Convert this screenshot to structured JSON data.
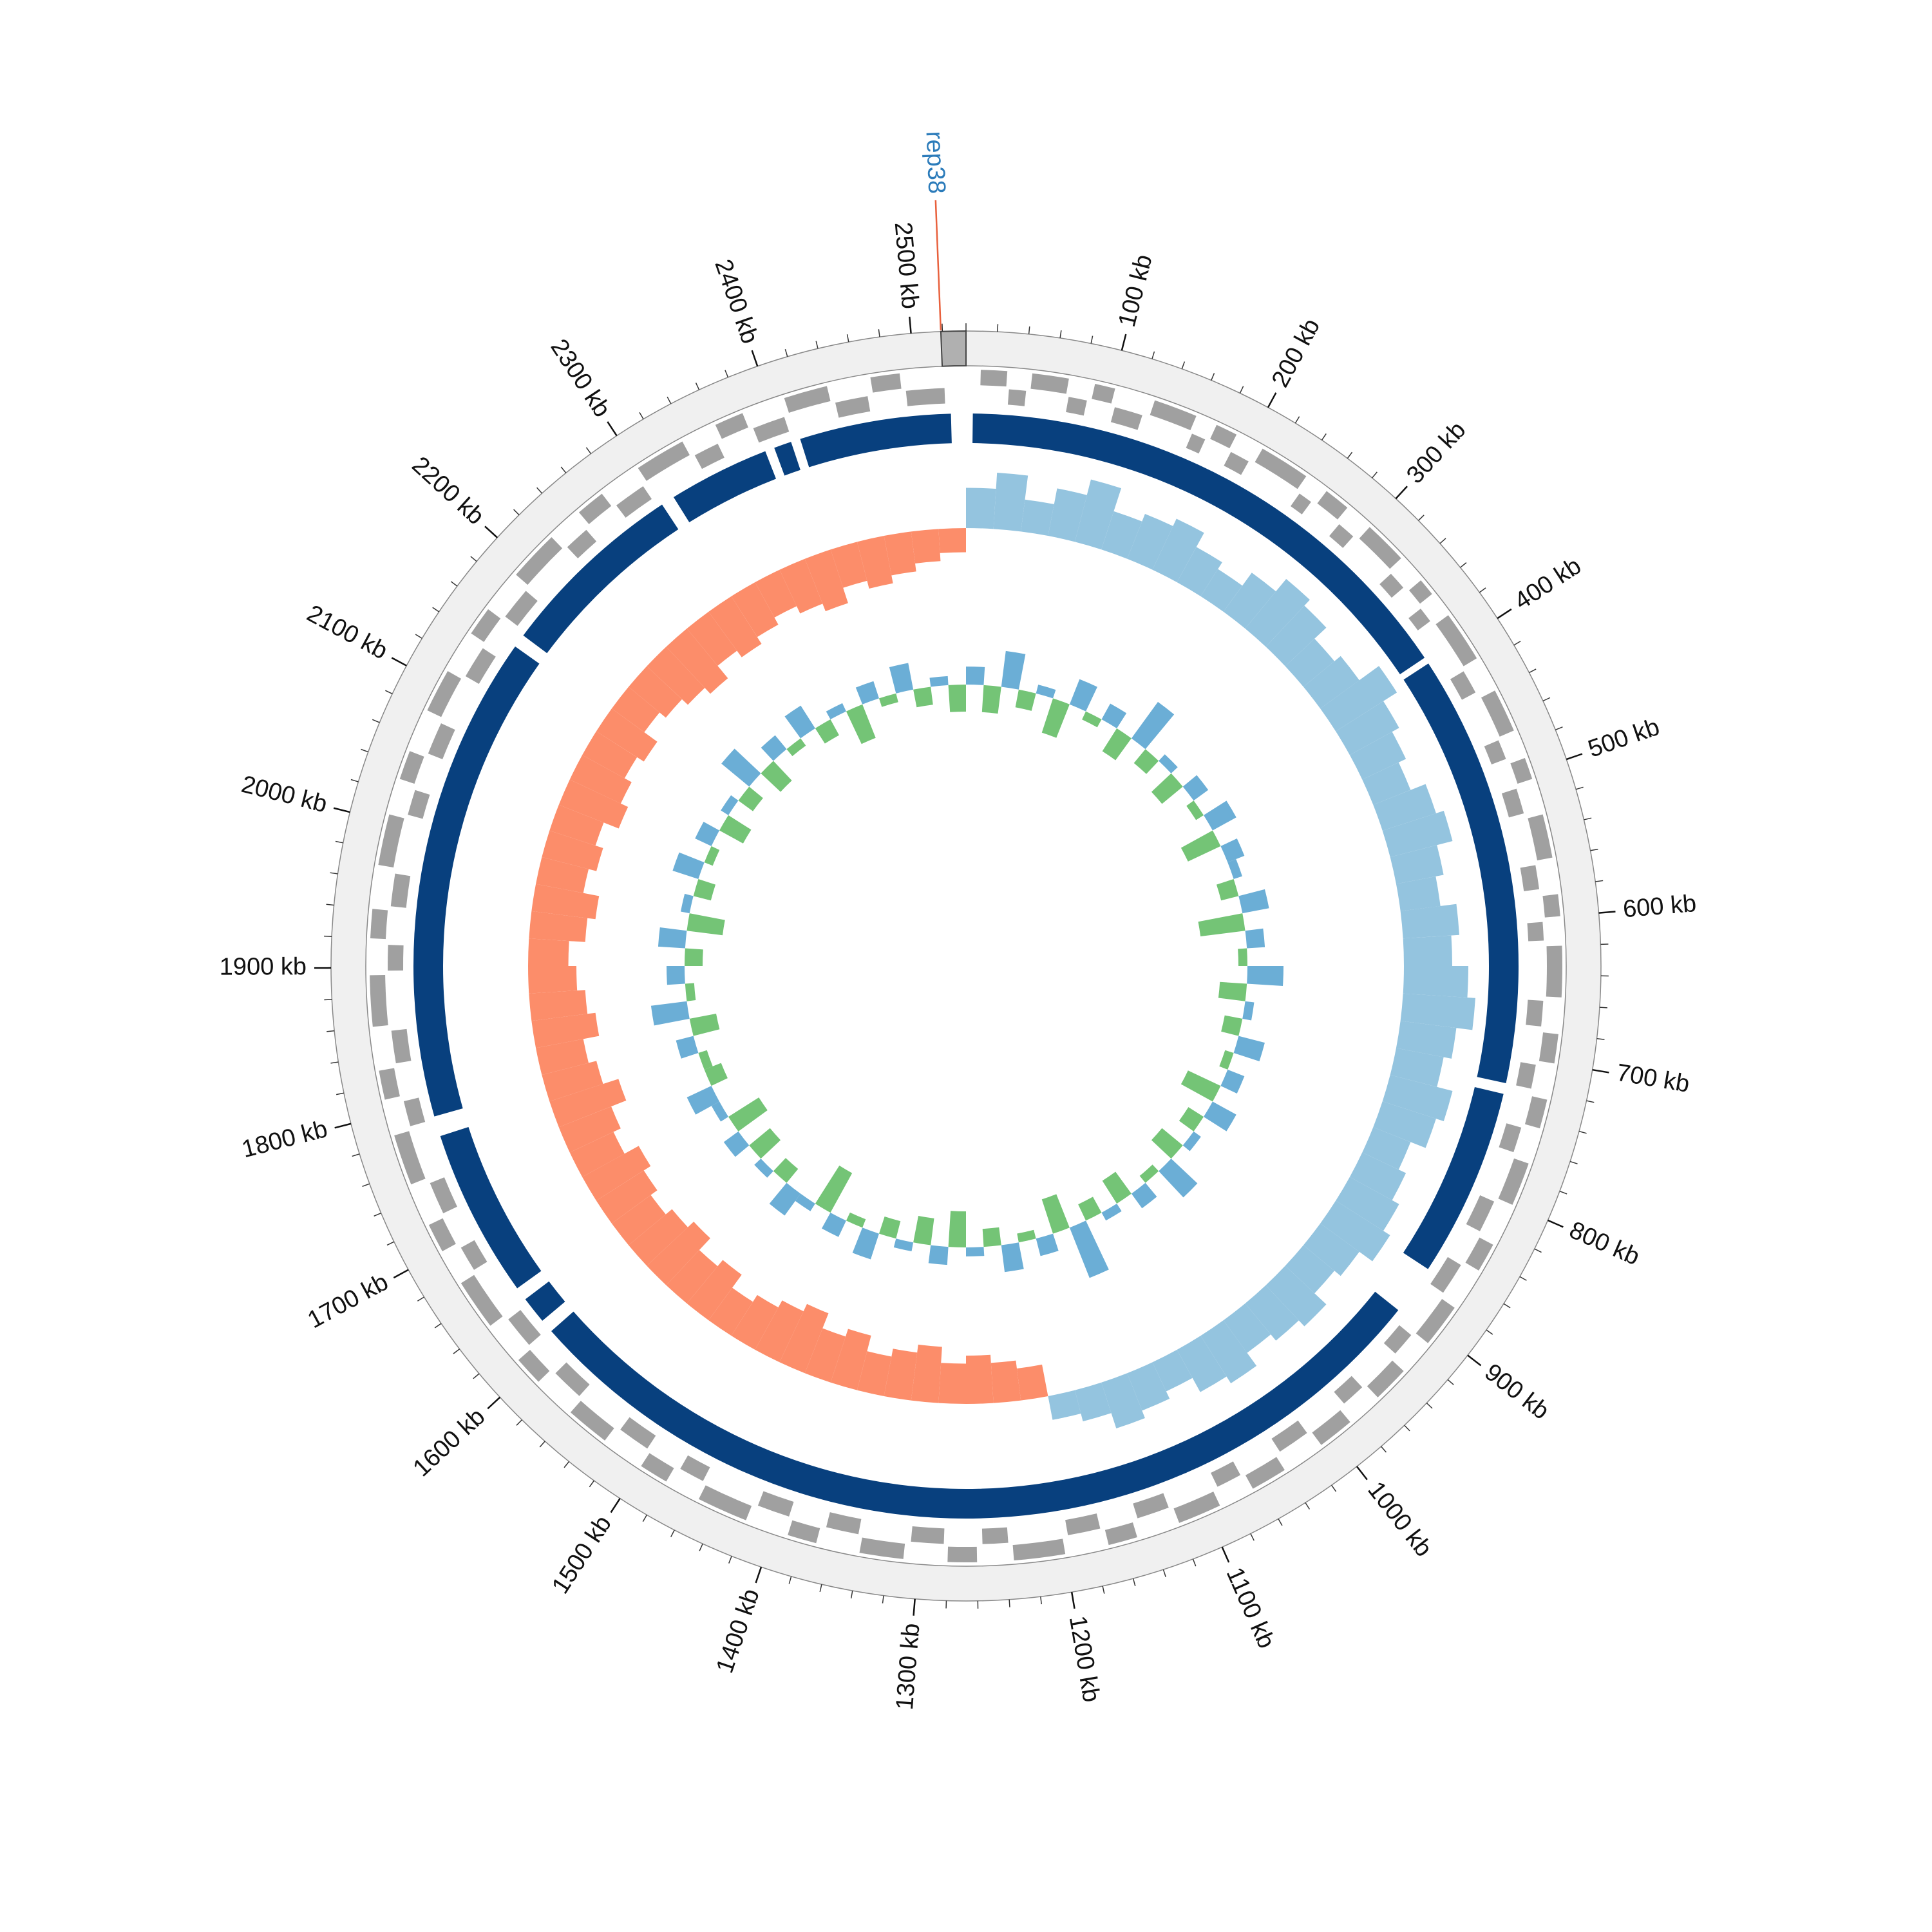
{
  "chart_data": {
    "type": "circular-genome",
    "xlim": [
      0,
      2535
    ],
    "xticks": [
      {
        "value": 100,
        "label": "100 kb"
      },
      {
        "value": 200,
        "label": "200 kb"
      },
      {
        "value": 300,
        "label": "300 kb"
      },
      {
        "value": 400,
        "label": "400 kb"
      },
      {
        "value": 500,
        "label": "500 kb"
      },
      {
        "value": 600,
        "label": "600 kb"
      },
      {
        "value": 700,
        "label": "700 kb"
      },
      {
        "value": 800,
        "label": "800 kb"
      },
      {
        "value": 900,
        "label": "900 kb"
      },
      {
        "value": 1000,
        "label": "1000 kb"
      },
      {
        "value": 1100,
        "label": "1100 kb"
      },
      {
        "value": 1200,
        "label": "1200 kb"
      },
      {
        "value": 1300,
        "label": "1300 kb"
      },
      {
        "value": 1400,
        "label": "1400 kb"
      },
      {
        "value": 1500,
        "label": "1500 kb"
      },
      {
        "value": 1600,
        "label": "1600 kb"
      },
      {
        "value": 1700,
        "label": "1700 kb"
      },
      {
        "value": 1800,
        "label": "1800 kb"
      },
      {
        "value": 1900,
        "label": "1900 kb"
      },
      {
        "value": 2000,
        "label": "2000 kb"
      },
      {
        "value": 2100,
        "label": "2100 kb"
      },
      {
        "value": 2200,
        "label": "2200 kb"
      },
      {
        "value": 2300,
        "label": "2300 kb"
      },
      {
        "value": 2400,
        "label": "2400 kb"
      },
      {
        "value": 2500,
        "label": "2500 kb"
      }
    ],
    "minor_tick_step": 20,
    "annotation": {
      "label": "rep38",
      "position": 2519,
      "region": [
        2519,
        2535
      ],
      "color": "#2b7bba",
      "line_color": "#e8603c"
    },
    "genes_forward": {
      "color": "#a0a0a0",
      "values": [
        [
          10,
          28
        ],
        [
          45,
          70
        ],
        [
          88,
          102
        ],
        [
          130,
          160
        ],
        [
          175,
          190
        ],
        [
          210,
          245
        ],
        [
          262,
          280
        ],
        [
          300,
          330
        ],
        [
          350,
          362
        ],
        [
          380,
          415
        ],
        [
          440,
          470
        ],
        [
          490,
          505
        ],
        [
          530,
          560
        ],
        [
          585,
          600
        ],
        [
          620,
          655
        ],
        [
          680,
          700
        ],
        [
          725,
          745
        ],
        [
          770,
          800
        ],
        [
          830,
          850
        ],
        [
          880,
          910
        ],
        [
          935,
          960
        ],
        [
          985,
          1010
        ],
        [
          1040,
          1065
        ],
        [
          1090,
          1120
        ],
        [
          1150,
          1170
        ],
        [
          1200,
          1235
        ],
        [
          1260,
          1280
        ],
        [
          1310,
          1340
        ],
        [
          1370,
          1390
        ],
        [
          1420,
          1455
        ],
        [
          1480,
          1500
        ],
        [
          1530,
          1560
        ],
        [
          1590,
          1610
        ],
        [
          1640,
          1675
        ],
        [
          1700,
          1720
        ],
        [
          1750,
          1785
        ],
        [
          1810,
          1830
        ],
        [
          1860,
          1895
        ],
        [
          1920,
          1940
        ],
        [
          1970,
          2005
        ],
        [
          2030,
          2050
        ],
        [
          2080,
          2110
        ],
        [
          2140,
          2160
        ],
        [
          2190,
          2225
        ],
        [
          2250,
          2270
        ],
        [
          2300,
          2335
        ],
        [
          2360,
          2380
        ],
        [
          2410,
          2440
        ],
        [
          2470,
          2490
        ]
      ]
    },
    "genes_reverse": {
      "color": "#a0a0a0",
      "values": [
        [
          30,
          42
        ],
        [
          72,
          85
        ],
        [
          105,
          125
        ],
        [
          162,
          172
        ],
        [
          192,
          206
        ],
        [
          248,
          258
        ],
        [
          283,
          296
        ],
        [
          333,
          346
        ],
        [
          365,
          376
        ],
        [
          418,
          435
        ],
        [
          472,
          486
        ],
        [
          508,
          526
        ],
        [
          563,
          580
        ],
        [
          603,
          616
        ],
        [
          658,
          676
        ],
        [
          703,
          720
        ],
        [
          748,
          766
        ],
        [
          803,
          826
        ],
        [
          853,
          876
        ],
        [
          913,
          930
        ],
        [
          963,
          980
        ],
        [
          1013,
          1036
        ],
        [
          1068,
          1086
        ],
        [
          1123,
          1146
        ],
        [
          1173,
          1196
        ],
        [
          1238,
          1256
        ],
        [
          1283,
          1306
        ],
        [
          1343,
          1366
        ],
        [
          1393,
          1416
        ],
        [
          1458,
          1476
        ],
        [
          1503,
          1526
        ],
        [
          1563,
          1586
        ],
        [
          1613,
          1636
        ],
        [
          1678,
          1696
        ],
        [
          1723,
          1746
        ],
        [
          1788,
          1806
        ],
        [
          1833,
          1856
        ],
        [
          1898,
          1916
        ],
        [
          1943,
          1966
        ],
        [
          2008,
          2026
        ],
        [
          2053,
          2076
        ],
        [
          2113,
          2136
        ],
        [
          2163,
          2186
        ],
        [
          2228,
          2246
        ],
        [
          2273,
          2296
        ],
        [
          2338,
          2356
        ],
        [
          2383,
          2406
        ],
        [
          2443,
          2466
        ],
        [
          2493,
          2520
        ]
      ]
    },
    "blocks": {
      "color": "#08407e",
      "values": [
        [
          5,
          395
        ],
        [
          400,
          720
        ],
        [
          728,
          868
        ],
        [
          905,
          1610
        ],
        [
          1620,
          1640
        ],
        [
          1650,
          1775
        ],
        [
          1790,
          2150
        ],
        [
          2160,
          2300
        ],
        [
          2310,
          2385
        ],
        [
          2392,
          2405
        ],
        [
          2412,
          2524
        ]
      ]
    },
    "gc_skew": {
      "ylim": [
        -0.1,
        0.1
      ],
      "positive_color": "#94c4df",
      "negative_color": "#fc8d6a",
      "values": [
        0.05,
        0.07,
        0.04,
        0.06,
        0.08,
        0.05,
        0.06,
        0.07,
        0.05,
        0.04,
        0.06,
        0.08,
        0.07,
        0.05,
        0.06,
        0.09,
        0.07,
        0.06,
        0.05,
        0.07,
        0.08,
        0.06,
        0.05,
        0.07,
        0.06,
        0.08,
        0.09,
        0.07,
        0.06,
        0.08,
        0.07,
        0.05,
        0.06,
        0.07,
        0.08,
        0.06,
        0.05,
        0.07,
        0.06,
        0.05,
        0.07,
        0.06,
        0.04,
        0.05,
        0.06,
        0.04,
        0.03,
        -0.04,
        -0.05,
        -0.06,
        -0.05,
        -0.07,
        -0.06,
        -0.05,
        -0.07,
        -0.06,
        -0.08,
        -0.07,
        -0.06,
        -0.05,
        -0.07,
        -0.06,
        -0.08,
        -0.07,
        -0.06,
        -0.07,
        -0.08,
        -0.06,
        -0.07,
        -0.09,
        -0.07,
        -0.06,
        -0.08,
        -0.07,
        -0.06,
        -0.05,
        -0.07,
        -0.08,
        -0.06,
        -0.07,
        -0.06,
        -0.08,
        -0.07,
        -0.06,
        -0.07,
        -0.05,
        -0.06,
        -0.07,
        -0.08,
        -0.06,
        -0.07,
        -0.06,
        -0.05,
        -0.06,
        -0.07,
        -0.05,
        -0.06,
        -0.05,
        -0.04,
        -0.03
      ]
    },
    "gc_content": {
      "ylim": [
        -10,
        10
      ],
      "positive_color": "#6baed6",
      "negative_color": "#74c476",
      "values": [
        2,
        -3,
        4,
        -2,
        1,
        -4,
        3,
        -1,
        2,
        -3,
        5,
        -2,
        1,
        -3,
        2,
        -1,
        3,
        -4,
        2,
        1,
        -2,
        3,
        -5,
        2,
        -1,
        4,
        -3,
        1,
        -2,
        3,
        -1,
        2,
        -4,
        3,
        -2,
        1,
        -3,
        4,
        -1,
        2,
        -3,
        1,
        -2,
        6,
        -4,
        2,
        -1,
        3,
        -2,
        1,
        -4,
        2,
        -3,
        1,
        -2,
        3,
        -1,
        2,
        -5,
        1,
        3,
        -2,
        1,
        -3,
        2,
        -4,
        1,
        3,
        -2,
        -1,
        2,
        -3,
        4,
        -1,
        2,
        -2,
        3,
        -4,
        1,
        -2,
        3,
        -1,
        2,
        -3,
        1,
        -2,
        4,
        -3,
        2,
        -1,
        3,
        -2,
        1,
        -4,
        2,
        -1,
        3,
        -2,
        1,
        -3
      ]
    }
  }
}
